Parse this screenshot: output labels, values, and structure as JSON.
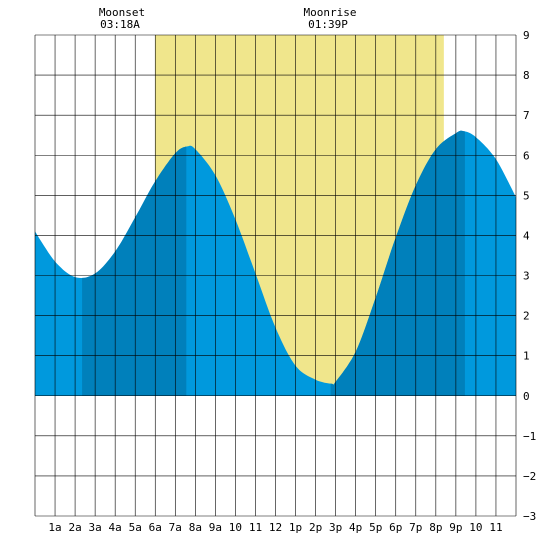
{
  "chart_data": {
    "type": "area",
    "title": "",
    "xlabel": "",
    "ylabel": "",
    "xlim": [
      0,
      24
    ],
    "ylim": [
      -3,
      9
    ],
    "y_ticks": [
      "9",
      "8",
      "7",
      "6",
      "5",
      "4",
      "3",
      "2",
      "1",
      "0",
      "−1",
      "−2",
      "−3"
    ],
    "x_ticks": [
      "1a",
      "2a",
      "3a",
      "4a",
      "5a",
      "6a",
      "7a",
      "8a",
      "9a",
      "10",
      "11",
      "12",
      "1p",
      "2p",
      "3p",
      "4p",
      "5p",
      "6p",
      "7p",
      "8p",
      "9p",
      "10",
      "11"
    ],
    "grid": true,
    "annotations": [
      {
        "label": "Moonset",
        "time": "03:18A",
        "hour": 3.3
      },
      {
        "label": "Moonrise",
        "time": "01:39P",
        "hour": 13.65
      }
    ],
    "daylight": {
      "start_hour": 6.0,
      "end_hour": 20.4,
      "color": "#f0e68c"
    },
    "colors": {
      "water": "#0099dd",
      "water_dark": "#0080bb",
      "grid": "#000000",
      "background": "#ffffff"
    },
    "dark_bands": [
      [
        2.35,
        7.55
      ],
      [
        14.75,
        21.45
      ]
    ],
    "series": [
      {
        "x": [
          0,
          1,
          2,
          3,
          4,
          5,
          6,
          7,
          7.6,
          8,
          9,
          10,
          11,
          12,
          13,
          14,
          14.8,
          15,
          16,
          17,
          18,
          19,
          20,
          21,
          21.4,
          22,
          23,
          24
        ],
        "values": [
          4.1,
          3.35,
          2.96,
          3.05,
          3.6,
          4.45,
          5.35,
          6.05,
          6.22,
          6.15,
          5.5,
          4.4,
          3.05,
          1.7,
          0.75,
          0.4,
          0.3,
          0.35,
          1.1,
          2.45,
          3.95,
          5.25,
          6.15,
          6.55,
          6.6,
          6.45,
          5.9,
          4.95
        ]
      }
    ]
  }
}
